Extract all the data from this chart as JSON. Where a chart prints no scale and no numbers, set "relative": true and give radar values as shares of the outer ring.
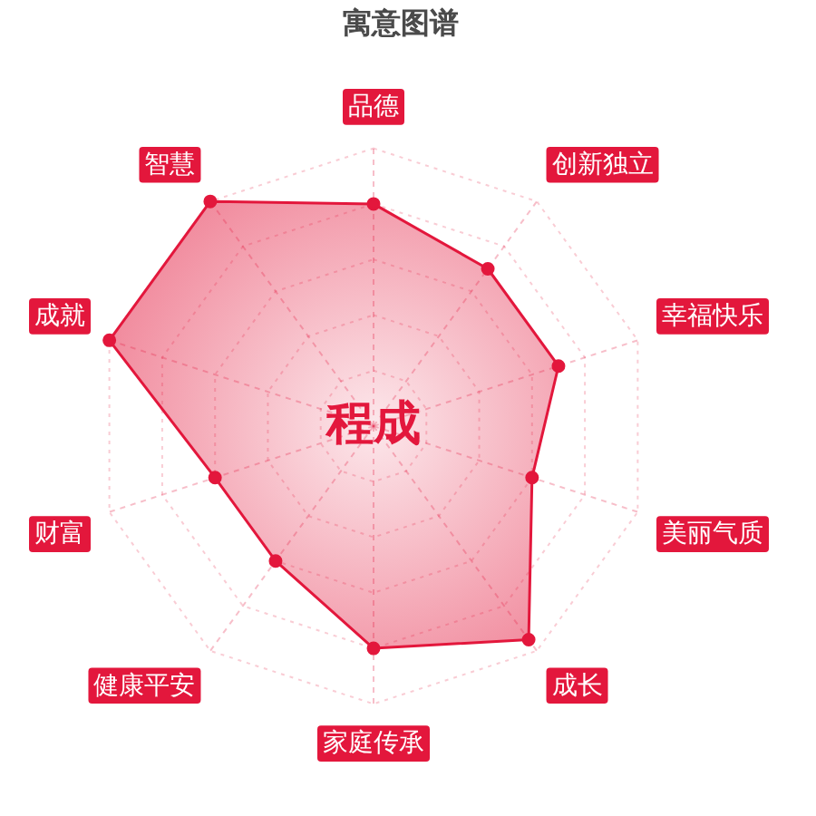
{
  "chart_data": {
    "type": "radar",
    "title": "寓意图谱",
    "categories": [
      "品德",
      "创新独立",
      "幸福快乐",
      "美丽气质",
      "成长",
      "家庭传承",
      "健康平安",
      "财富",
      "成就",
      "智慧"
    ],
    "relative": true,
    "series": [
      {
        "color": "#e3173c",
        "values": [
          0.8,
          0.7,
          0.7,
          0.6,
          0.95,
          0.8,
          0.6,
          0.6,
          1,
          1
        ]
      }
    ],
    "grid": true,
    "marker": "circle",
    "line_style": "solid",
    "annotations": [
      "程成"
    ]
  }
}
